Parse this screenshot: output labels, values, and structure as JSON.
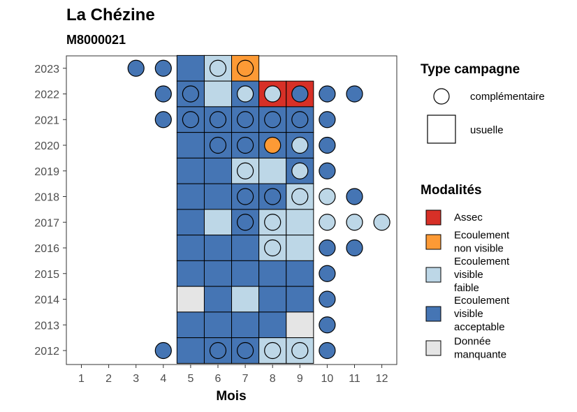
{
  "chart_data": {
    "type": "heatmap",
    "title": "La Chézine",
    "subtitle": "M8000021",
    "xlabel": "Mois",
    "ylabel": "",
    "x_ticks": [
      1,
      2,
      3,
      4,
      5,
      6,
      7,
      8,
      9,
      10,
      11,
      12
    ],
    "y_ticks": [
      2012,
      2013,
      2014,
      2015,
      2016,
      2017,
      2018,
      2019,
      2020,
      2021,
      2022,
      2023
    ],
    "grid": false,
    "legend_placement": "right",
    "colors": {
      "Assec": "#d73027",
      "Ecoulement non visible": "#fd9a35",
      "Ecoulement visible faible": "#bdd7e7",
      "Ecoulement visible acceptable": "#4575b4",
      "Donnée manquante": "#e5e5e5"
    },
    "legend_type": {
      "title": "Type campagne",
      "items": [
        {
          "label": "complémentaire",
          "shape": "circle"
        },
        {
          "label": "usuelle",
          "shape": "square"
        }
      ]
    },
    "legend_modalites": {
      "title": "Modalités",
      "items": [
        {
          "key": "Assec",
          "lines": [
            "Assec"
          ]
        },
        {
          "key": "Ecoulement non visible",
          "lines": [
            "Ecoulement",
            "non visible"
          ]
        },
        {
          "key": "Ecoulement visible faible",
          "lines": [
            "Ecoulement",
            "visible",
            "faible"
          ]
        },
        {
          "key": "Ecoulement visible acceptable",
          "lines": [
            "Ecoulement",
            "visible",
            "acceptable"
          ]
        },
        {
          "key": "Donnée manquante",
          "lines": [
            "Donnée",
            "manquante"
          ]
        }
      ]
    },
    "usuelle": [
      {
        "year": 2023,
        "month": 5,
        "modalite": "Ecoulement visible acceptable"
      },
      {
        "year": 2023,
        "month": 6,
        "modalite": "Ecoulement visible faible"
      },
      {
        "year": 2023,
        "month": 7,
        "modalite": "Ecoulement non visible"
      },
      {
        "year": 2022,
        "month": 5,
        "modalite": "Ecoulement visible acceptable"
      },
      {
        "year": 2022,
        "month": 6,
        "modalite": "Ecoulement visible faible"
      },
      {
        "year": 2022,
        "month": 7,
        "modalite": "Ecoulement visible acceptable"
      },
      {
        "year": 2022,
        "month": 8,
        "modalite": "Assec"
      },
      {
        "year": 2022,
        "month": 9,
        "modalite": "Assec"
      },
      {
        "year": 2021,
        "month": 5,
        "modalite": "Ecoulement visible acceptable"
      },
      {
        "year": 2021,
        "month": 6,
        "modalite": "Ecoulement visible acceptable"
      },
      {
        "year": 2021,
        "month": 7,
        "modalite": "Ecoulement visible acceptable"
      },
      {
        "year": 2021,
        "month": 8,
        "modalite": "Ecoulement visible acceptable"
      },
      {
        "year": 2021,
        "month": 9,
        "modalite": "Ecoulement visible acceptable"
      },
      {
        "year": 2020,
        "month": 5,
        "modalite": "Ecoulement visible acceptable"
      },
      {
        "year": 2020,
        "month": 6,
        "modalite": "Ecoulement visible acceptable"
      },
      {
        "year": 2020,
        "month": 7,
        "modalite": "Ecoulement visible acceptable"
      },
      {
        "year": 2020,
        "month": 8,
        "modalite": "Ecoulement visible acceptable"
      },
      {
        "year": 2020,
        "month": 9,
        "modalite": "Ecoulement visible acceptable"
      },
      {
        "year": 2019,
        "month": 5,
        "modalite": "Ecoulement visible acceptable"
      },
      {
        "year": 2019,
        "month": 6,
        "modalite": "Ecoulement visible acceptable"
      },
      {
        "year": 2019,
        "month": 7,
        "modalite": "Ecoulement visible faible"
      },
      {
        "year": 2019,
        "month": 8,
        "modalite": "Ecoulement visible faible"
      },
      {
        "year": 2019,
        "month": 9,
        "modalite": "Ecoulement visible acceptable"
      },
      {
        "year": 2018,
        "month": 5,
        "modalite": "Ecoulement visible acceptable"
      },
      {
        "year": 2018,
        "month": 6,
        "modalite": "Ecoulement visible acceptable"
      },
      {
        "year": 2018,
        "month": 7,
        "modalite": "Ecoulement visible acceptable"
      },
      {
        "year": 2018,
        "month": 8,
        "modalite": "Ecoulement visible acceptable"
      },
      {
        "year": 2018,
        "month": 9,
        "modalite": "Ecoulement visible faible"
      },
      {
        "year": 2017,
        "month": 5,
        "modalite": "Ecoulement visible acceptable"
      },
      {
        "year": 2017,
        "month": 6,
        "modalite": "Ecoulement visible faible"
      },
      {
        "year": 2017,
        "month": 7,
        "modalite": "Ecoulement visible acceptable"
      },
      {
        "year": 2017,
        "month": 8,
        "modalite": "Ecoulement visible faible"
      },
      {
        "year": 2017,
        "month": 9,
        "modalite": "Ecoulement visible faible"
      },
      {
        "year": 2016,
        "month": 5,
        "modalite": "Ecoulement visible acceptable"
      },
      {
        "year": 2016,
        "month": 6,
        "modalite": "Ecoulement visible acceptable"
      },
      {
        "year": 2016,
        "month": 7,
        "modalite": "Ecoulement visible acceptable"
      },
      {
        "year": 2016,
        "month": 8,
        "modalite": "Ecoulement visible faible"
      },
      {
        "year": 2016,
        "month": 9,
        "modalite": "Ecoulement visible faible"
      },
      {
        "year": 2015,
        "month": 5,
        "modalite": "Ecoulement visible acceptable"
      },
      {
        "year": 2015,
        "month": 6,
        "modalite": "Ecoulement visible acceptable"
      },
      {
        "year": 2015,
        "month": 7,
        "modalite": "Ecoulement visible acceptable"
      },
      {
        "year": 2015,
        "month": 8,
        "modalite": "Ecoulement visible acceptable"
      },
      {
        "year": 2015,
        "month": 9,
        "modalite": "Ecoulement visible acceptable"
      },
      {
        "year": 2014,
        "month": 5,
        "modalite": "Donnée manquante"
      },
      {
        "year": 2014,
        "month": 6,
        "modalite": "Ecoulement visible acceptable"
      },
      {
        "year": 2014,
        "month": 7,
        "modalite": "Ecoulement visible faible"
      },
      {
        "year": 2014,
        "month": 8,
        "modalite": "Ecoulement visible acceptable"
      },
      {
        "year": 2014,
        "month": 9,
        "modalite": "Ecoulement visible acceptable"
      },
      {
        "year": 2013,
        "month": 5,
        "modalite": "Ecoulement visible acceptable"
      },
      {
        "year": 2013,
        "month": 6,
        "modalite": "Ecoulement visible acceptable"
      },
      {
        "year": 2013,
        "month": 7,
        "modalite": "Ecoulement visible acceptable"
      },
      {
        "year": 2013,
        "month": 8,
        "modalite": "Ecoulement visible acceptable"
      },
      {
        "year": 2013,
        "month": 9,
        "modalite": "Donnée manquante"
      },
      {
        "year": 2012,
        "month": 5,
        "modalite": "Ecoulement visible acceptable"
      },
      {
        "year": 2012,
        "month": 6,
        "modalite": "Ecoulement visible acceptable"
      },
      {
        "year": 2012,
        "month": 7,
        "modalite": "Ecoulement visible acceptable"
      },
      {
        "year": 2012,
        "month": 8,
        "modalite": "Ecoulement visible faible"
      },
      {
        "year": 2012,
        "month": 9,
        "modalite": "Ecoulement visible faible"
      }
    ],
    "complementaire": [
      {
        "year": 2023,
        "month": 3,
        "modalite": "Ecoulement visible acceptable"
      },
      {
        "year": 2023,
        "month": 4,
        "modalite": "Ecoulement visible acceptable"
      },
      {
        "year": 2023,
        "month": 6,
        "modalite": "Ecoulement visible faible"
      },
      {
        "year": 2023,
        "month": 7,
        "modalite": "Ecoulement non visible"
      },
      {
        "year": 2022,
        "month": 4,
        "modalite": "Ecoulement visible acceptable"
      },
      {
        "year": 2022,
        "month": 5,
        "modalite": "Ecoulement visible acceptable"
      },
      {
        "year": 2022,
        "month": 7,
        "modalite": "Ecoulement visible faible"
      },
      {
        "year": 2022,
        "month": 8,
        "modalite": "Ecoulement visible faible"
      },
      {
        "year": 2022,
        "month": 9,
        "modalite": "Ecoulement visible acceptable"
      },
      {
        "year": 2022,
        "month": 10,
        "modalite": "Ecoulement visible acceptable"
      },
      {
        "year": 2022,
        "month": 11,
        "modalite": "Ecoulement visible acceptable"
      },
      {
        "year": 2021,
        "month": 4,
        "modalite": "Ecoulement visible acceptable"
      },
      {
        "year": 2021,
        "month": 5,
        "modalite": "Ecoulement visible acceptable"
      },
      {
        "year": 2021,
        "month": 6,
        "modalite": "Ecoulement visible acceptable"
      },
      {
        "year": 2021,
        "month": 7,
        "modalite": "Ecoulement visible acceptable"
      },
      {
        "year": 2021,
        "month": 8,
        "modalite": "Ecoulement visible acceptable"
      },
      {
        "year": 2021,
        "month": 9,
        "modalite": "Ecoulement visible acceptable"
      },
      {
        "year": 2021,
        "month": 10,
        "modalite": "Ecoulement visible acceptable"
      },
      {
        "year": 2020,
        "month": 6,
        "modalite": "Ecoulement visible acceptable"
      },
      {
        "year": 2020,
        "month": 7,
        "modalite": "Ecoulement visible acceptable"
      },
      {
        "year": 2020,
        "month": 8,
        "modalite": "Ecoulement non visible"
      },
      {
        "year": 2020,
        "month": 9,
        "modalite": "Ecoulement visible faible"
      },
      {
        "year": 2020,
        "month": 10,
        "modalite": "Ecoulement visible acceptable"
      },
      {
        "year": 2019,
        "month": 7,
        "modalite": "Ecoulement visible faible"
      },
      {
        "year": 2019,
        "month": 9,
        "modalite": "Ecoulement visible faible"
      },
      {
        "year": 2019,
        "month": 10,
        "modalite": "Ecoulement visible acceptable"
      },
      {
        "year": 2018,
        "month": 7,
        "modalite": "Ecoulement visible acceptable"
      },
      {
        "year": 2018,
        "month": 8,
        "modalite": "Ecoulement visible acceptable"
      },
      {
        "year": 2018,
        "month": 9,
        "modalite": "Ecoulement visible faible"
      },
      {
        "year": 2018,
        "month": 10,
        "modalite": "Ecoulement visible faible"
      },
      {
        "year": 2018,
        "month": 11,
        "modalite": "Ecoulement visible acceptable"
      },
      {
        "year": 2017,
        "month": 7,
        "modalite": "Ecoulement visible acceptable"
      },
      {
        "year": 2017,
        "month": 8,
        "modalite": "Ecoulement visible faible"
      },
      {
        "year": 2017,
        "month": 10,
        "modalite": "Ecoulement visible faible"
      },
      {
        "year": 2017,
        "month": 11,
        "modalite": "Ecoulement visible faible"
      },
      {
        "year": 2017,
        "month": 12,
        "modalite": "Ecoulement visible faible"
      },
      {
        "year": 2016,
        "month": 8,
        "modalite": "Ecoulement visible faible"
      },
      {
        "year": 2016,
        "month": 10,
        "modalite": "Ecoulement visible acceptable"
      },
      {
        "year": 2016,
        "month": 11,
        "modalite": "Ecoulement visible acceptable"
      },
      {
        "year": 2015,
        "month": 10,
        "modalite": "Ecoulement visible acceptable"
      },
      {
        "year": 2014,
        "month": 10,
        "modalite": "Ecoulement visible acceptable"
      },
      {
        "year": 2013,
        "month": 10,
        "modalite": "Ecoulement visible acceptable"
      },
      {
        "year": 2012,
        "month": 4,
        "modalite": "Ecoulement visible acceptable"
      },
      {
        "year": 2012,
        "month": 6,
        "modalite": "Ecoulement visible acceptable"
      },
      {
        "year": 2012,
        "month": 7,
        "modalite": "Ecoulement visible acceptable"
      },
      {
        "year": 2012,
        "month": 8,
        "modalite": "Ecoulement visible faible"
      },
      {
        "year": 2012,
        "month": 9,
        "modalite": "Ecoulement visible faible"
      },
      {
        "year": 2012,
        "month": 10,
        "modalite": "Ecoulement visible acceptable"
      }
    ]
  }
}
